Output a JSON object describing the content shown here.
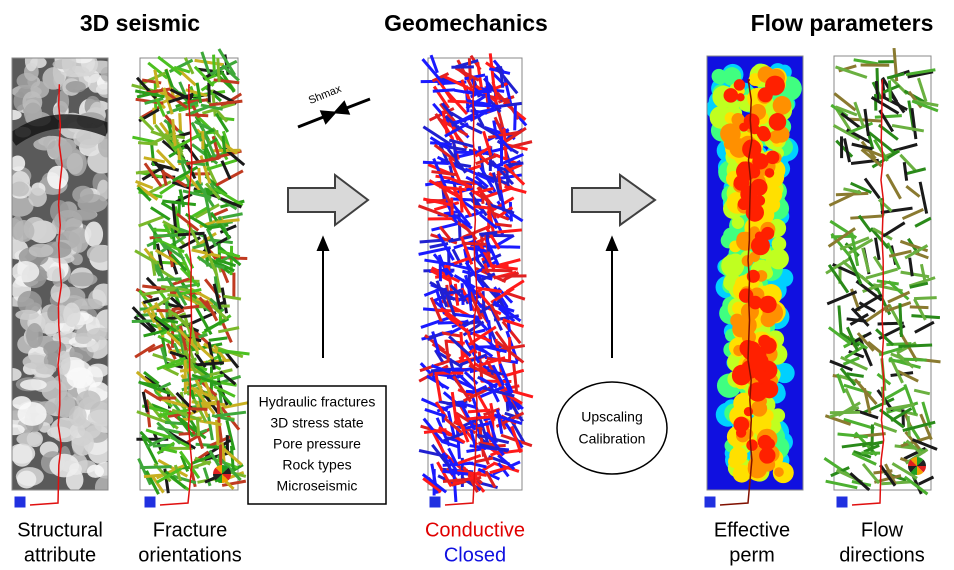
{
  "headers": [
    "3D seismic",
    "Geomechanics",
    "Flow parameters"
  ],
  "stress_label": "Shmax",
  "inputs": [
    "Hydraulic fractures",
    "3D stress state",
    "Pore pressure",
    "Rock types",
    "Microseismic"
  ],
  "process": [
    "Upscaling",
    "Calibration"
  ],
  "panels": [
    {
      "caption": [
        "Structural",
        "attribute"
      ]
    },
    {
      "caption": [
        "Fracture",
        "orientations"
      ]
    },
    {
      "caption": [
        "Conductive",
        "Closed"
      ]
    },
    {
      "caption": [
        "Effective",
        "perm"
      ]
    },
    {
      "caption": [
        "Flow",
        "directions"
      ]
    }
  ]
}
